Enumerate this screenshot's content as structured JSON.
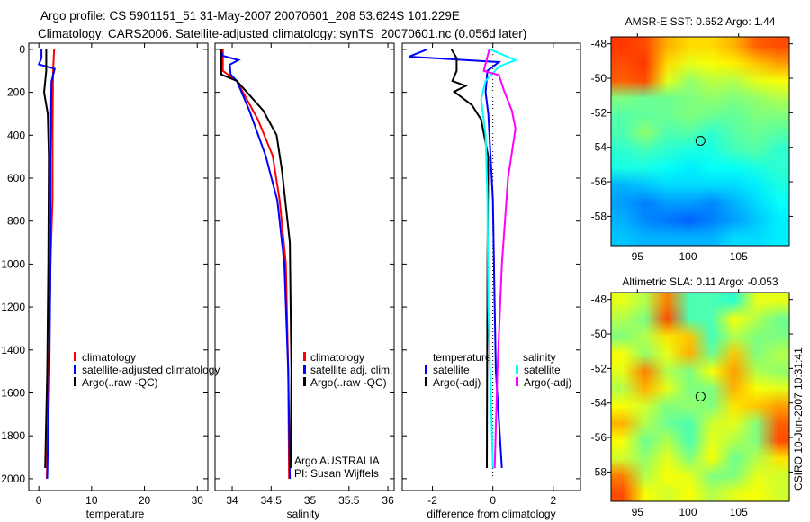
{
  "title": {
    "line1": "Argo profile: CS 5901151_51 31-May-2007 20070601_208 53.624S 101.229E",
    "line2": "Climatology: CARS2006. Satellite-adjusted climatology: synTS_20070601.nc (0.056d later)"
  },
  "credit": "CSIRO 10-Jun-2007 10:31:41",
  "chart_data": [
    {
      "type": "line",
      "id": "temperature",
      "xlabel": "temperature",
      "ylabel": "",
      "xlim": [
        -1.9,
        32
      ],
      "ylim": [
        2055,
        -29
      ],
      "xticks": [
        0,
        10,
        20,
        30
      ],
      "yticks": [
        0,
        200,
        400,
        600,
        800,
        1000,
        1200,
        1400,
        1600,
        1800,
        2000
      ],
      "legend": [
        "climatology",
        "satellite-adjusted climatology",
        "Argo(..raw -QC)"
      ],
      "series": [
        {
          "name": "climatology",
          "color": "#ff0000",
          "depth": [
            0,
            100,
            400,
            700,
            1000,
            1500,
            2000
          ],
          "values": [
            2.9,
            2.7,
            2.6,
            2.6,
            2.2,
            1.9,
            1.5
          ]
        },
        {
          "name": "satellite-adjusted climatology",
          "color": "#0000ff",
          "depth": [
            0,
            40,
            70,
            90,
            150,
            500,
            1000,
            1500,
            2000
          ],
          "values": [
            0.5,
            0.5,
            0.0,
            3.0,
            2.4,
            2.2,
            2.2,
            2.0,
            1.6
          ]
        },
        {
          "name": "Argo(..raw -QC)",
          "color": "#000000",
          "depth": [
            0,
            100,
            150,
            200,
            300,
            500,
            1000,
            1500,
            1950
          ],
          "values": [
            1.4,
            1.4,
            1.2,
            1.0,
            1.7,
            1.9,
            1.8,
            1.6,
            1.2
          ]
        }
      ]
    },
    {
      "type": "line",
      "id": "salinity",
      "xlabel": "salinity",
      "xlim": [
        33.78,
        36.08
      ],
      "ylim": [
        2055,
        -29
      ],
      "xticks": [
        "34",
        "34.5",
        "35",
        "35.5",
        "36"
      ],
      "legend": [
        "climatology",
        "satellite adj. clim.",
        "Argo(..raw -QC)"
      ],
      "annotation": [
        "Argo AUSTRALIA",
        "PI: Susan Wijffels"
      ],
      "series": [
        {
          "name": "climatology",
          "color": "#ff0000",
          "depth": [
            0,
            100,
            147,
            327,
            495,
            704,
            1000,
            1500,
            2000
          ],
          "values": [
            33.88,
            33.88,
            34.06,
            34.33,
            34.52,
            34.61,
            34.69,
            34.72,
            34.73
          ]
        },
        {
          "name": "satellite adj. clim.",
          "color": "#0000ff",
          "depth": [
            0,
            30,
            50,
            71,
            117,
            147,
            285,
            495,
            704,
            1000,
            1500,
            2000
          ],
          "values": [
            33.85,
            33.88,
            34.08,
            33.97,
            33.98,
            34.06,
            34.22,
            34.43,
            34.58,
            34.67,
            34.72,
            34.74
          ]
        },
        {
          "name": "Argo(..raw -QC)",
          "color": "#000000",
          "depth": [
            0,
            117,
            147,
            285,
            400,
            566,
            900,
            1500,
            1950
          ],
          "values": [
            33.86,
            33.86,
            34.06,
            34.4,
            34.57,
            34.64,
            34.74,
            34.76,
            34.75
          ]
        }
      ]
    },
    {
      "type": "line",
      "id": "difference",
      "xlabel": "difference from climatology",
      "xlim": [
        -3.0,
        2.9
      ],
      "ylim": [
        2055,
        -29
      ],
      "xticks": [
        -2,
        0,
        2
      ],
      "legend_headers": [
        "temperature",
        "salinity"
      ],
      "legend": [
        "satellite",
        "Argo(-adj)",
        "satellite",
        "Argo(-adj)"
      ],
      "series": [
        {
          "name": "temperature satellite",
          "color": "#0000ff",
          "depth": [
            0,
            34,
            59,
            100,
            200,
            300,
            700,
            1200,
            1500,
            1950
          ],
          "values": [
            -2.18,
            -2.78,
            0.2,
            -0.18,
            -0.24,
            -0.15,
            0.0,
            0.06,
            0.1,
            0.3
          ]
        },
        {
          "name": "temperature Argo(-adj)",
          "color": "#000000",
          "depth": [
            0,
            40,
            100,
            147,
            170,
            197,
            260,
            327,
            500,
            1000,
            1950
          ],
          "values": [
            -1.37,
            -1.2,
            -1.2,
            -1.34,
            -0.9,
            -1.28,
            -0.69,
            -0.39,
            -0.15,
            -0.18,
            -0.2
          ]
        },
        {
          "name": "salinity satellite",
          "color": "#00ffff",
          "depth": [
            0,
            50,
            80,
            147,
            230,
            400,
            700,
            1200,
            1950
          ],
          "values": [
            -0.09,
            0.75,
            0.2,
            -0.24,
            -0.39,
            -0.24,
            -0.18,
            -0.15,
            0.0
          ]
        },
        {
          "name": "salinity Argo(-adj)",
          "color": "#ff00ff",
          "depth": [
            0,
            100,
            120,
            189,
            285,
            369,
            600,
            1000,
            1500,
            1950
          ],
          "values": [
            -0.12,
            -0.3,
            0.2,
            0.36,
            0.63,
            0.75,
            0.5,
            0.3,
            0.15,
            0.06
          ]
        }
      ]
    },
    {
      "type": "heatmap",
      "id": "sst",
      "title": "AMSR-E SST: 0.652 Argo: 1.44",
      "xlim": [
        92.4,
        110
      ],
      "ylim": [
        -47.6,
        -59.7
      ],
      "xticks": [
        95,
        100,
        105
      ],
      "yticks": [
        -48,
        -50,
        -52,
        -54,
        -56,
        -58
      ],
      "marker": {
        "lon": 101.229,
        "lat": -53.624
      },
      "colormap": "jet",
      "grid": [
        [
          0.82,
          0.8,
          0.7,
          0.66,
          0.66,
          0.7,
          0.78,
          0.8
        ],
        [
          0.8,
          0.82,
          0.66,
          0.6,
          0.62,
          0.64,
          0.68,
          0.72
        ],
        [
          0.78,
          0.8,
          0.6,
          0.52,
          0.56,
          0.55,
          0.6,
          0.62
        ],
        [
          0.5,
          0.48,
          0.48,
          0.5,
          0.52,
          0.5,
          0.52,
          0.55
        ],
        [
          0.46,
          0.47,
          0.48,
          0.5,
          0.48,
          0.47,
          0.5,
          0.5
        ],
        [
          0.45,
          0.52,
          0.45,
          0.46,
          0.42,
          0.46,
          0.48,
          0.46
        ],
        [
          0.42,
          0.44,
          0.42,
          0.4,
          0.4,
          0.44,
          0.46,
          0.42
        ],
        [
          0.4,
          0.4,
          0.38,
          0.36,
          0.38,
          0.38,
          0.4,
          0.42
        ],
        [
          0.3,
          0.32,
          0.34,
          0.34,
          0.34,
          0.34,
          0.36,
          0.4
        ],
        [
          0.28,
          0.25,
          0.28,
          0.28,
          0.26,
          0.3,
          0.34,
          0.38
        ],
        [
          0.3,
          0.26,
          0.24,
          0.22,
          0.25,
          0.28,
          0.32,
          0.36
        ],
        [
          0.32,
          0.3,
          0.3,
          0.3,
          0.3,
          0.34,
          0.34,
          0.36
        ]
      ]
    },
    {
      "type": "heatmap",
      "id": "sla",
      "title": "Altimetric SLA: 0.11 Argo: -0.053",
      "xlim": [
        92.4,
        110
      ],
      "ylim": [
        -47.6,
        -59.7
      ],
      "xticks": [
        95,
        100,
        105
      ],
      "yticks": [
        -48,
        -50,
        -52,
        -54,
        -56,
        -58
      ],
      "marker": {
        "lon": 101.229,
        "lat": -53.624
      },
      "colormap": "jet",
      "grid": [
        [
          0.6,
          0.55,
          0.75,
          0.45,
          0.45,
          0.42,
          0.6,
          0.6
        ],
        [
          0.55,
          0.5,
          0.8,
          0.45,
          0.45,
          0.62,
          0.55,
          0.48
        ],
        [
          0.5,
          0.55,
          0.65,
          0.68,
          0.44,
          0.55,
          0.5,
          0.5
        ],
        [
          0.62,
          0.52,
          0.6,
          0.7,
          0.48,
          0.68,
          0.5,
          0.55
        ],
        [
          0.6,
          0.75,
          0.55,
          0.5,
          0.62,
          0.72,
          0.55,
          0.52
        ],
        [
          0.55,
          0.7,
          0.6,
          0.5,
          0.5,
          0.7,
          0.62,
          0.6
        ],
        [
          0.62,
          0.58,
          0.5,
          0.52,
          0.5,
          0.65,
          0.68,
          0.72
        ],
        [
          0.7,
          0.55,
          0.48,
          0.45,
          0.58,
          0.6,
          0.5,
          0.78
        ],
        [
          0.62,
          0.48,
          0.55,
          0.45,
          0.6,
          0.55,
          0.5,
          0.8
        ],
        [
          0.58,
          0.52,
          0.6,
          0.5,
          0.62,
          0.48,
          0.55,
          0.65
        ],
        [
          0.75,
          0.55,
          0.62,
          0.6,
          0.5,
          0.5,
          0.6,
          0.58
        ],
        [
          0.8,
          0.62,
          0.58,
          0.62,
          0.55,
          0.6,
          0.62,
          0.58
        ]
      ]
    }
  ]
}
